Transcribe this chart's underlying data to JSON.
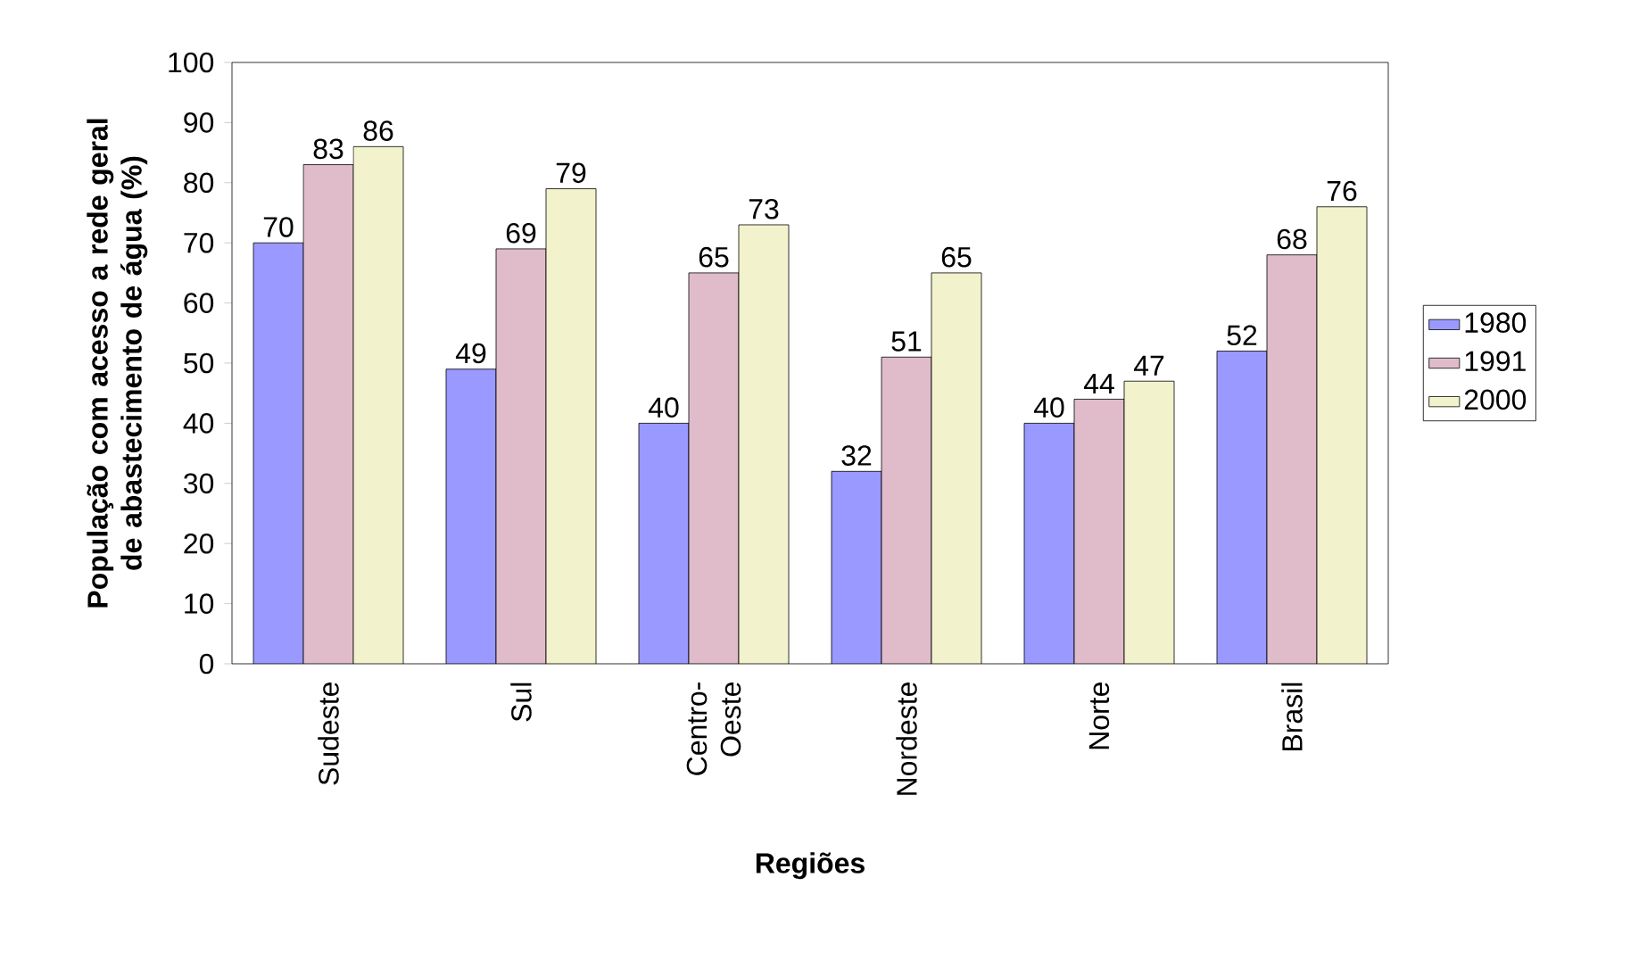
{
  "chart_data": {
    "type": "bar",
    "xlabel": "Regiões",
    "ylabel": "População com acesso a rede geral de abastecimento de água (%)",
    "categories": [
      "Sudeste",
      "Sul",
      "Centro-Oeste",
      "Nordeste",
      "Norte",
      "Brasil"
    ],
    "series": [
      {
        "name": "1980",
        "color": "#9999ff",
        "values": [
          70,
          49,
          40,
          32,
          40,
          52
        ]
      },
      {
        "name": "1991",
        "color": "#e0bccb",
        "values": [
          83,
          69,
          65,
          51,
          44,
          68
        ]
      },
      {
        "name": "2000",
        "color": "#f2f2cc",
        "values": [
          86,
          79,
          73,
          65,
          47,
          76
        ]
      }
    ],
    "ylim": [
      0,
      100
    ],
    "yticks": [
      0,
      10,
      20,
      30,
      40,
      50,
      60,
      70,
      80,
      90,
      100
    ],
    "data_labels": true,
    "legend": "right",
    "grid": false
  }
}
